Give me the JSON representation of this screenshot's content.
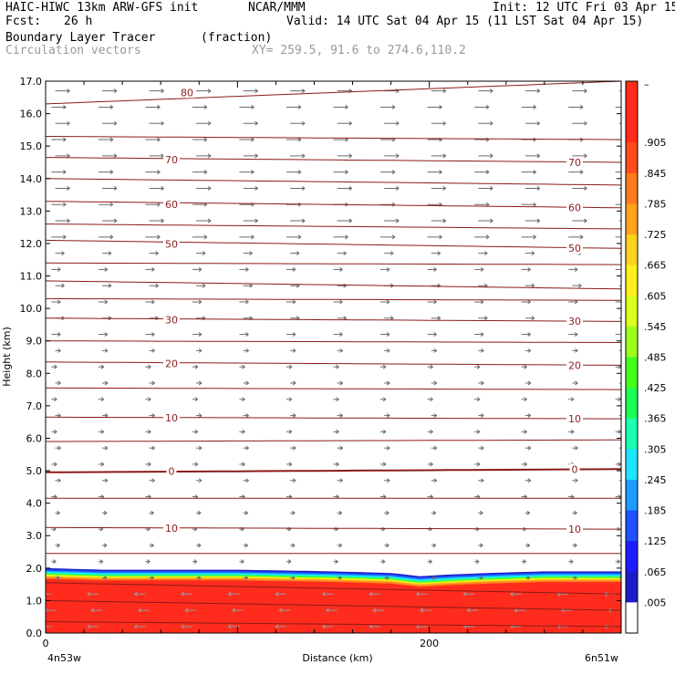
{
  "header": {
    "model": "HAIC-HIWC 13km ARW-GFS init",
    "org": "NCAR/MMM",
    "init": "Init: 12 UTC Fri 03 Apr 15",
    "fcst_label": "Fcst:",
    "fcst_value": "26 h",
    "valid": "Valid: 14 UTC Sat 04 Apr 15 (11 LST Sat 04 Apr 15)",
    "field_name": "Boundary Layer Tracer",
    "field_units": "(fraction)",
    "vectors_label": "Circulation vectors",
    "xy": "XY= 259.5, 91.6 to 274.6,110.2"
  },
  "chart_data": {
    "type": "heatmap",
    "xlabel": "Distance (km)",
    "ylabel": "Height (km)",
    "xlim": [
      0,
      300
    ],
    "ylim": [
      0,
      17
    ],
    "xticks": [
      {
        "v": 0,
        "label": "0"
      },
      {
        "v": 200,
        "label": "200"
      }
    ],
    "x_end_labels": {
      "left": "4n53w",
      "right": "6n51w"
    },
    "yticks": [
      "0.0",
      "1.0",
      "2.0",
      "3.0",
      "4.0",
      "5.0",
      "6.0",
      "7.0",
      "8.0",
      "9.0",
      "10.0",
      "11.0",
      "12.0",
      "13.0",
      "14.0",
      "15.0",
      "16.0",
      "17.0"
    ],
    "tracer_top_profile": {
      "x": [
        0,
        30,
        60,
        100,
        150,
        180,
        195,
        210,
        230,
        260,
        300
      ],
      "y": [
        2.0,
        1.95,
        1.95,
        1.95,
        1.9,
        1.85,
        1.75,
        1.8,
        1.85,
        1.9,
        1.9
      ]
    },
    "colorbar": {
      "labels": [
        "–",
        ".905",
        ".845",
        ".785",
        ".725",
        ".665",
        ".605",
        ".545",
        ".485",
        ".425",
        ".365",
        ".305",
        ".245",
        ".185",
        ".125",
        ".065",
        ".005"
      ],
      "colors": [
        "#ff2b1c",
        "#ff2b1c",
        "#ff4d1c",
        "#ff7a1c",
        "#ffa21c",
        "#ffd21c",
        "#fff01c",
        "#dcff1c",
        "#9cff1c",
        "#44ff1c",
        "#1cff55",
        "#1cffb0",
        "#1ce6ff",
        "#1c9cff",
        "#1c52ff",
        "#1c1cff",
        "#1c1cc8",
        "#ffffff"
      ]
    },
    "isotherms": {
      "levels": [
        -80,
        -70,
        -60,
        -50,
        -30,
        -20,
        -10,
        0,
        10
      ],
      "labeled": [
        {
          "label": "80",
          "side": "left",
          "z": 16.3,
          "zr": 17.0
        },
        {
          "label": "70",
          "side": "both",
          "z": 14.65,
          "zr": 14.5
        },
        {
          "label": "60",
          "side": "both",
          "z": 13.3,
          "zr": 13.1
        },
        {
          "label": "50",
          "side": "both",
          "z": 12.1,
          "zr": 11.85
        },
        {
          "label": "30",
          "side": "both",
          "z": 9.7,
          "zr": 9.6
        },
        {
          "label": "20",
          "side": "both",
          "z": 8.35,
          "zr": 8.25
        },
        {
          "label": "10",
          "side": "both",
          "z": 6.65,
          "zr": 6.6
        },
        {
          "label": "0",
          "side": "both",
          "z": 4.95,
          "zr": 5.05
        },
        {
          "label": "10",
          "side": "both",
          "z": 3.25,
          "zr": 3.2
        }
      ],
      "unlabeled": [
        {
          "z": 15.3,
          "zr": 15.2
        },
        {
          "z": 14.0,
          "zr": 13.8
        },
        {
          "z": 12.6,
          "zr": 12.45
        },
        {
          "z": 11.4,
          "zr": 11.35
        },
        {
          "z": 10.85,
          "zr": 10.6
        },
        {
          "z": 10.3,
          "zr": 10.25
        },
        {
          "z": 9.0,
          "zr": 8.95
        },
        {
          "z": 7.55,
          "zr": 7.5
        },
        {
          "z": 5.9,
          "zr": 5.95
        },
        {
          "z": 4.15,
          "zr": 4.15
        },
        {
          "z": 2.45,
          "zr": 2.45
        },
        {
          "z": 1.55,
          "zr": 1.2
        },
        {
          "z": 1.0,
          "zr": 0.7
        },
        {
          "z": 0.35,
          "zr": 0.2
        }
      ]
    }
  }
}
